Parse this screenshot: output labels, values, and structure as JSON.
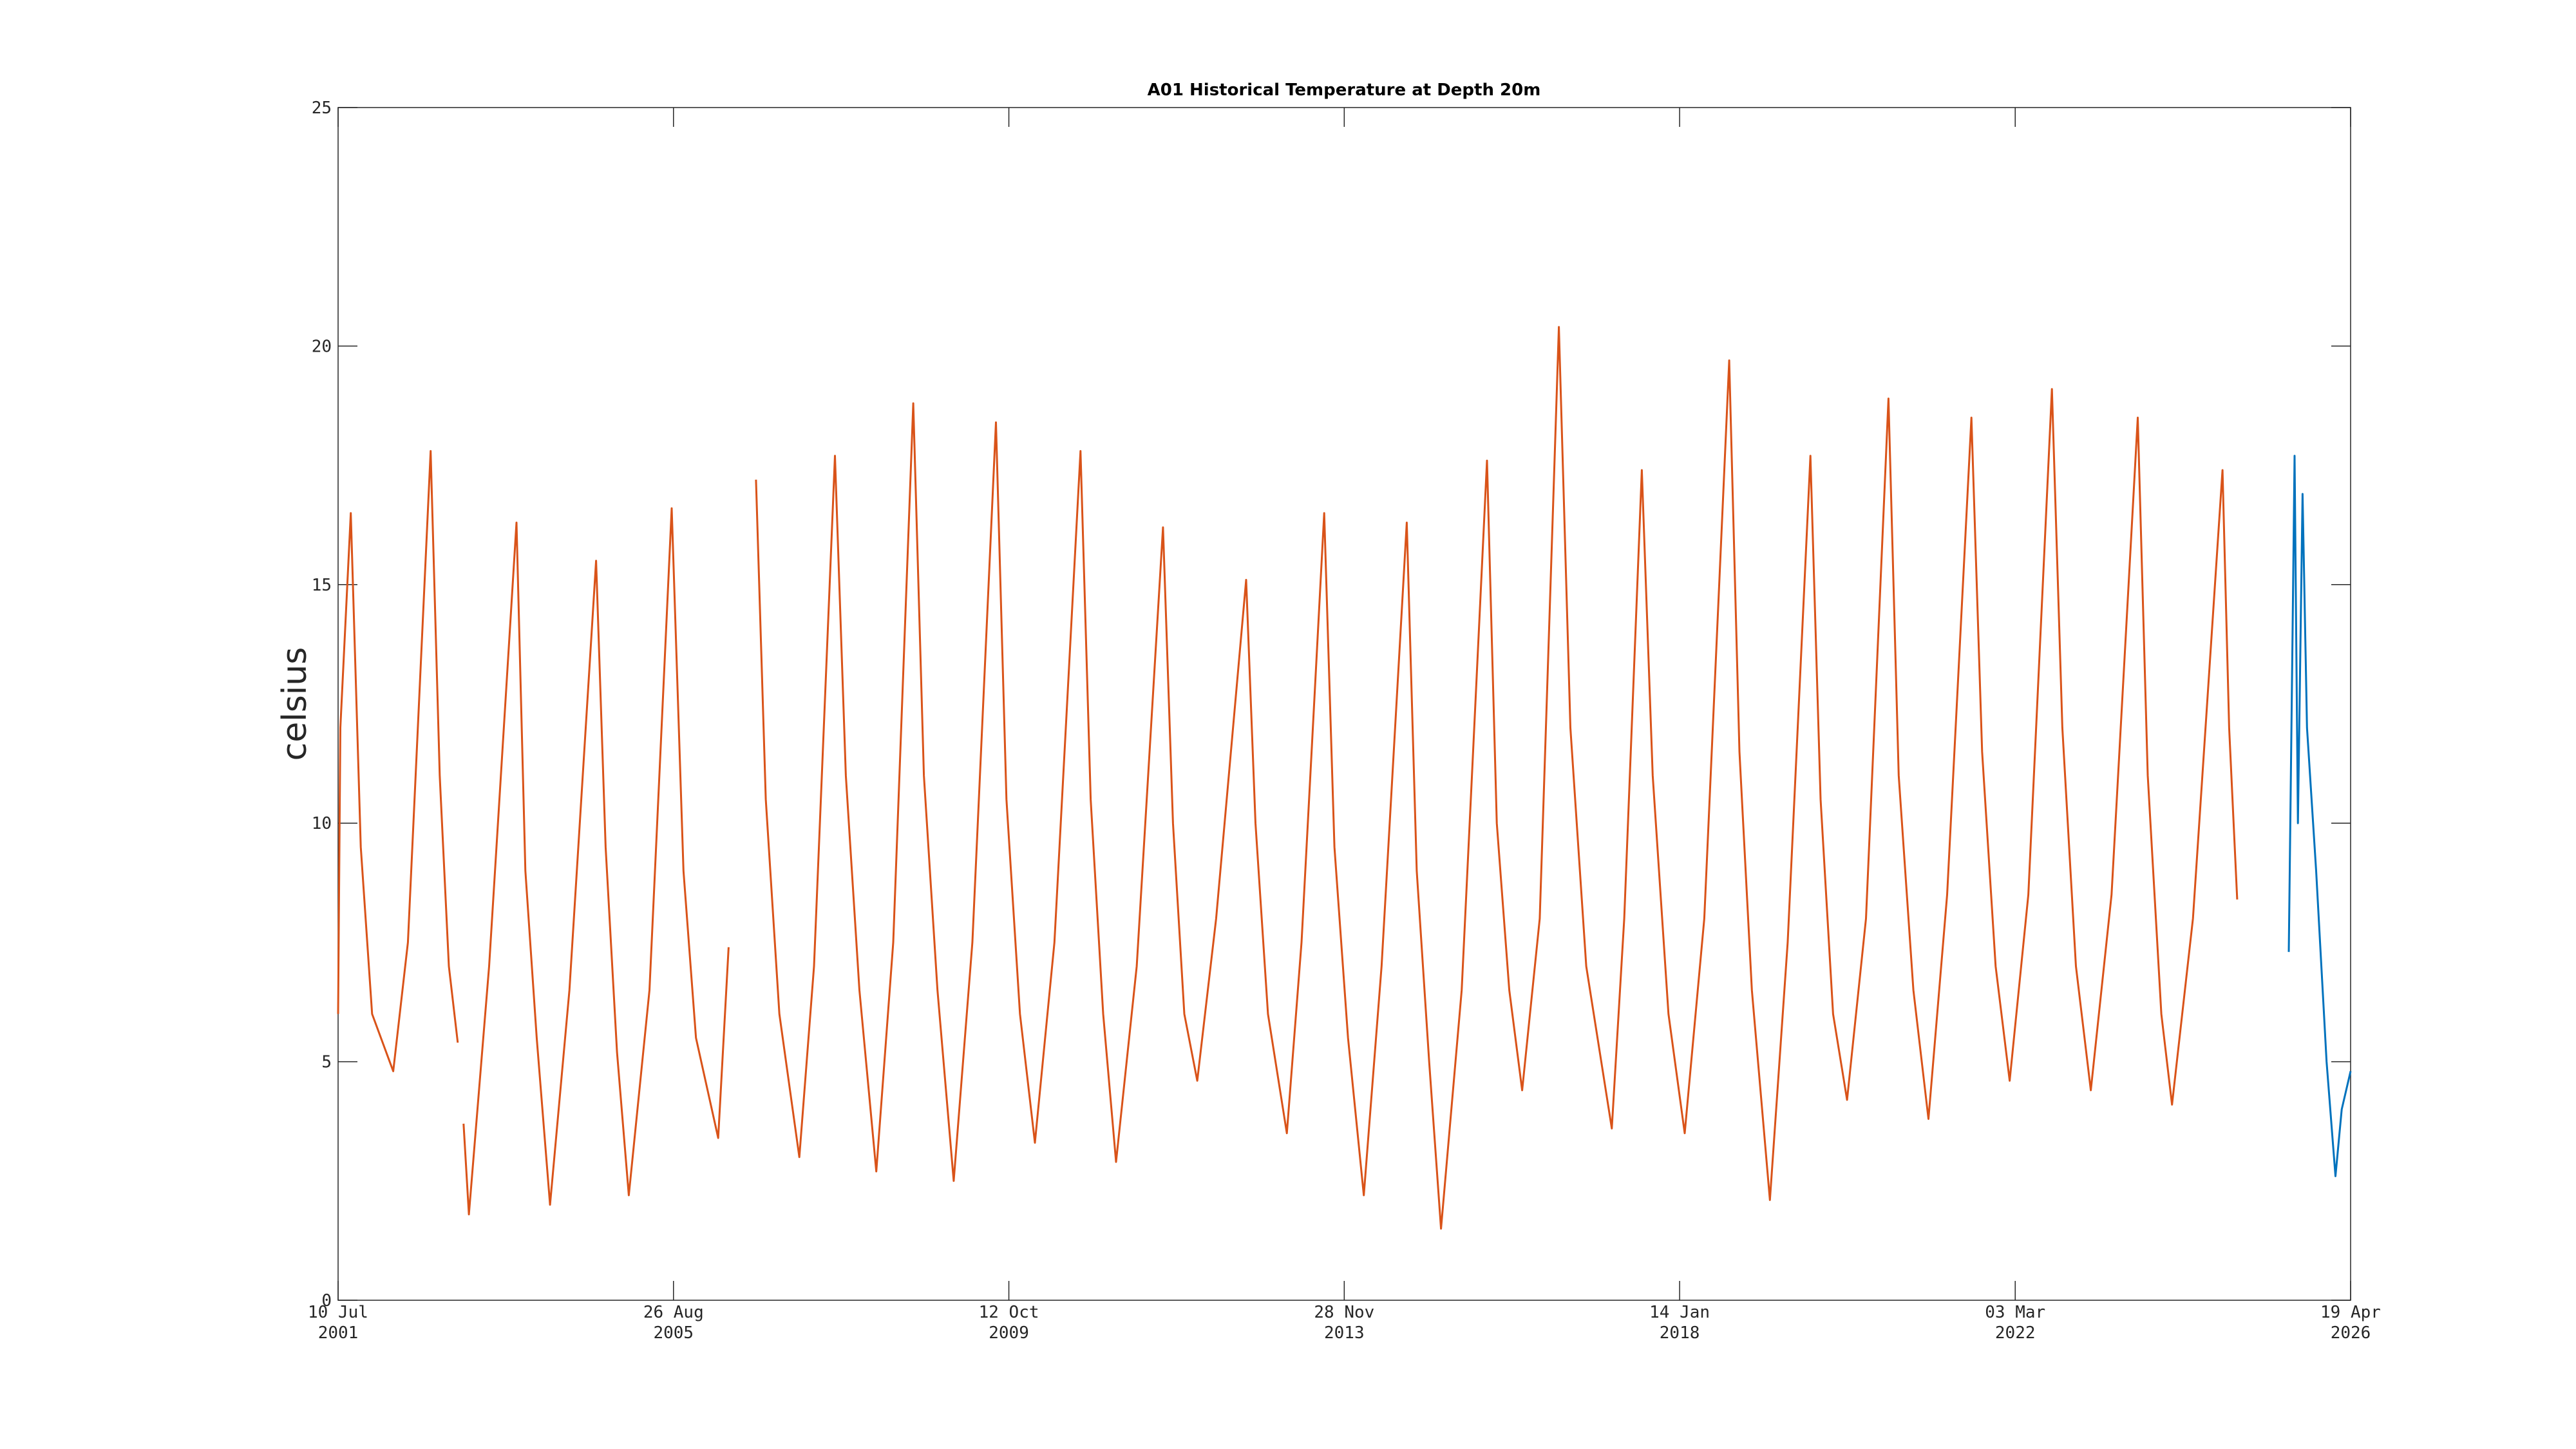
{
  "chart_data": {
    "type": "line",
    "title": "A01 Historical Temperature at Depth 20m",
    "y_label": "celsius",
    "xlim": [
      "2001-07-10",
      "2026-04-19"
    ],
    "xticks": [
      {
        "value": "2001-07-10",
        "label": [
          "10 Jul",
          "2001"
        ]
      },
      {
        "value": "2005-08-26",
        "label": [
          "26 Aug",
          "2005"
        ]
      },
      {
        "value": "2009-10-12",
        "label": [
          "12 Oct",
          "2009"
        ]
      },
      {
        "value": "2013-11-28",
        "label": [
          "28 Nov",
          "2013"
        ]
      },
      {
        "value": "2018-01-14",
        "label": [
          "14 Jan",
          "2018"
        ]
      },
      {
        "value": "2022-03-03",
        "label": [
          "03 Mar",
          "2022"
        ]
      },
      {
        "value": "2026-04-19",
        "label": [
          "19 Apr",
          "2026"
        ]
      }
    ],
    "ylim": [
      0,
      25
    ],
    "yticks": [
      0,
      5,
      10,
      15,
      20,
      25
    ],
    "series": [
      {
        "color": "#d95319",
        "x": [
          "2001-07-10",
          "2001-07-20",
          "2001-09-05",
          "2001-10-20",
          "2001-12-10",
          "2002-03-15",
          "2002-05-20",
          "2002-08-30",
          "2002-10-10",
          "2002-11-20",
          "2002-12-30",
          "2003-01-10",
          "2003-01-25",
          "2003-02-18",
          "2003-05-20",
          "2003-09-20",
          "2003-10-30",
          "2003-12-20",
          "2004-02-18",
          "2004-05-15",
          "2004-09-12",
          "2004-10-25",
          "2004-12-15",
          "2005-02-06",
          "2005-05-10",
          "2005-08-18",
          "2005-10-10",
          "2005-12-05",
          "2006-03-15",
          "2006-05-01",
          "2006-07-15",
          "2006-09-01",
          "2006-10-15",
          "2006-12-15",
          "2007-03-15",
          "2007-05-20",
          "2007-08-22",
          "2007-10-10",
          "2007-12-10",
          "2008-02-24",
          "2008-05-10",
          "2008-08-08",
          "2008-09-25",
          "2008-11-25",
          "2009-02-06",
          "2009-05-01",
          "2009-08-15",
          "2009-10-01",
          "2009-12-01",
          "2010-02-06",
          "2010-05-05",
          "2010-08-30",
          "2010-10-15",
          "2010-12-10",
          "2011-02-06",
          "2011-05-10",
          "2011-09-05",
          "2011-10-20",
          "2011-12-10",
          "2012-02-06",
          "2012-05-01",
          "2012-09-13",
          "2012-10-25",
          "2012-12-20",
          "2013-03-15",
          "2013-05-20",
          "2013-08-30",
          "2013-10-15",
          "2013-12-15",
          "2014-02-24",
          "2014-05-15",
          "2014-09-05",
          "2014-10-20",
          "2014-12-15",
          "2015-02-06",
          "2015-05-10",
          "2015-09-01",
          "2015-10-15",
          "2015-12-10",
          "2016-02-06",
          "2016-04-25",
          "2016-07-20",
          "2016-09-10",
          "2016-11-20",
          "2017-03-15",
          "2017-05-10",
          "2017-07-28",
          "2017-09-15",
          "2017-11-25",
          "2018-02-06",
          "2018-05-05",
          "2018-08-25",
          "2018-10-10",
          "2018-12-05",
          "2019-02-24",
          "2019-05-15",
          "2019-08-25",
          "2019-10-10",
          "2019-12-05",
          "2020-02-06",
          "2020-05-01",
          "2020-08-10",
          "2020-09-25",
          "2020-11-30",
          "2021-02-06",
          "2021-05-01",
          "2021-08-18",
          "2021-10-05",
          "2021-12-05",
          "2022-02-06",
          "2022-05-01",
          "2022-08-15",
          "2022-10-01",
          "2022-12-01",
          "2023-02-06",
          "2023-05-10",
          "2023-09-05",
          "2023-10-20",
          "2023-12-20",
          "2024-02-06",
          "2024-05-10",
          "2024-09-20",
          "2024-10-20",
          "2024-11-25"
        ],
        "values": [
          6.0,
          12,
          16.5,
          9.5,
          6.0,
          4.8,
          7.5,
          17.8,
          11,
          7.0,
          5.4,
          null,
          3.7,
          1.8,
          7.0,
          16.3,
          9,
          5.5,
          2.0,
          6.5,
          15.5,
          9.5,
          5.2,
          2.2,
          6.5,
          16.6,
          9,
          5.5,
          3.4,
          7.4,
          null,
          17.2,
          10.5,
          6.0,
          3.0,
          7.0,
          17.7,
          11,
          6.5,
          2.7,
          7.5,
          18.8,
          11,
          6.5,
          2.5,
          7.5,
          18.4,
          10.5,
          6.0,
          3.3,
          7.5,
          17.8,
          10.5,
          6.0,
          2.9,
          7.0,
          16.2,
          10,
          6.0,
          4.6,
          8.0,
          15.1,
          10,
          6.0,
          3.5,
          7.5,
          16.5,
          9.5,
          5.5,
          2.2,
          7.0,
          16.3,
          9.0,
          5.0,
          1.5,
          6.5,
          17.6,
          10,
          6.5,
          4.4,
          8.0,
          20.4,
          12,
          7.0,
          3.6,
          8.0,
          17.4,
          11,
          6.0,
          3.5,
          8.0,
          19.7,
          11.5,
          6.5,
          2.1,
          7.5,
          17.7,
          10.5,
          6.0,
          4.2,
          8.0,
          18.9,
          11.0,
          6.5,
          3.8,
          8.5,
          18.5,
          11.5,
          7.0,
          4.6,
          8.5,
          19.1,
          12.0,
          7.0,
          4.4,
          8.5,
          18.5,
          11.0,
          6.0,
          4.1,
          8.0,
          17.4,
          12.0,
          8.4
        ]
      },
      {
        "color": "#0072bd",
        "x": [
          "2025-07-15",
          "2025-08-01",
          "2025-08-10",
          "2025-08-25",
          "2025-09-15",
          "2025-10-05",
          "2025-11-15",
          "2026-01-01",
          "2026-02-10",
          "2026-03-10",
          "2026-04-19"
        ],
        "values": [
          7.3,
          14.0,
          17.7,
          10,
          16.9,
          12,
          9.0,
          5.0,
          2.6,
          4.0,
          4.8
        ]
      }
    ]
  }
}
